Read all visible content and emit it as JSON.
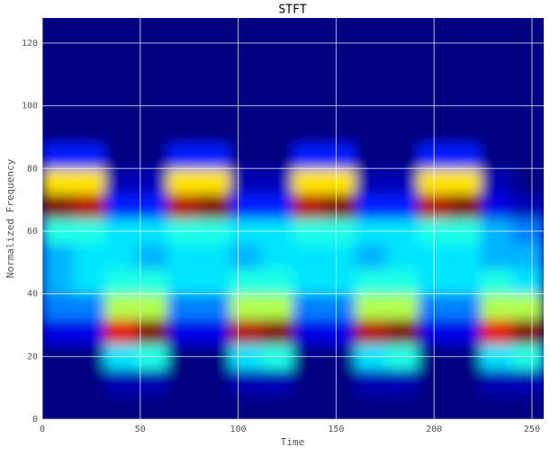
{
  "chart_data": {
    "type": "heatmap",
    "title": "STFT",
    "x_label": "Time",
    "y_label": "Normalized Frequency",
    "x": [
      8,
      24,
      40,
      56,
      72,
      88,
      104,
      120,
      136,
      152,
      168,
      184,
      200,
      216,
      232,
      248
    ],
    "y": [
      4,
      12,
      20,
      28,
      36,
      44,
      52,
      60,
      68,
      76,
      84,
      92,
      100,
      108,
      116,
      124
    ],
    "z": [
      [
        0,
        0,
        0,
        0,
        0,
        0,
        0,
        0,
        0,
        0,
        0,
        0,
        0,
        0,
        0,
        0
      ],
      [
        0,
        0,
        0.05,
        0.05,
        0,
        0,
        0.05,
        0.05,
        0,
        0,
        0.05,
        0.05,
        0,
        0,
        0.05,
        0.05
      ],
      [
        0,
        0,
        0.35,
        0.4,
        0,
        0,
        0.35,
        0.4,
        0,
        0,
        0.35,
        0.4,
        0,
        0,
        0.35,
        0.4
      ],
      [
        0.1,
        0.1,
        0.9,
        1,
        0.1,
        0.1,
        0.95,
        1,
        0.1,
        0.1,
        0.95,
        1,
        0.1,
        0.1,
        0.9,
        1
      ],
      [
        0.25,
        0.25,
        0.55,
        0.55,
        0.25,
        0.25,
        0.55,
        0.55,
        0.25,
        0.25,
        0.55,
        0.55,
        0.25,
        0.25,
        0.55,
        0.55
      ],
      [
        0.3,
        0.35,
        0.4,
        0.4,
        0.35,
        0.35,
        0.4,
        0.4,
        0.35,
        0.35,
        0.4,
        0.4,
        0.35,
        0.35,
        0.4,
        0.35
      ],
      [
        0.3,
        0.35,
        0.35,
        0.3,
        0.35,
        0.35,
        0.3,
        0.35,
        0.35,
        0.35,
        0.3,
        0.35,
        0.35,
        0.35,
        0.3,
        0.3
      ],
      [
        0.4,
        0.4,
        0.35,
        0.35,
        0.4,
        0.4,
        0.35,
        0.35,
        0.4,
        0.4,
        0.35,
        0.35,
        0.4,
        0.4,
        0.3,
        0.25
      ],
      [
        1,
        0.95,
        0.15,
        0.15,
        0.95,
        1,
        0.15,
        0.15,
        0.95,
        1,
        0.15,
        0.15,
        0.95,
        1,
        0.1,
        0.05
      ],
      [
        0.65,
        0.65,
        0.05,
        0.05,
        0.65,
        0.65,
        0.05,
        0.05,
        0.65,
        0.65,
        0.05,
        0.05,
        0.65,
        0.65,
        0.05,
        0
      ],
      [
        0.15,
        0.15,
        0,
        0,
        0.15,
        0.15,
        0,
        0,
        0.15,
        0.15,
        0,
        0,
        0.15,
        0.15,
        0,
        0
      ],
      [
        0,
        0,
        0,
        0,
        0,
        0,
        0,
        0,
        0,
        0,
        0,
        0,
        0,
        0,
        0,
        0
      ],
      [
        0,
        0,
        0,
        0,
        0,
        0,
        0,
        0,
        0,
        0,
        0,
        0,
        0,
        0,
        0,
        0
      ],
      [
        0,
        0,
        0,
        0,
        0,
        0,
        0,
        0,
        0,
        0,
        0,
        0,
        0,
        0,
        0,
        0
      ],
      [
        0,
        0,
        0,
        0,
        0,
        0,
        0,
        0,
        0,
        0,
        0,
        0,
        0,
        0,
        0,
        0
      ],
      [
        0,
        0,
        0,
        0,
        0,
        0,
        0,
        0,
        0,
        0,
        0,
        0,
        0,
        0,
        0,
        0
      ]
    ],
    "xlim": [
      0,
      256
    ],
    "ylim": [
      0,
      128
    ],
    "xticks": [
      0,
      50,
      100,
      150,
      200,
      250
    ],
    "yticks": [
      0,
      20,
      40,
      60,
      80,
      100,
      120
    ],
    "grid": true,
    "colormap": "jet"
  }
}
